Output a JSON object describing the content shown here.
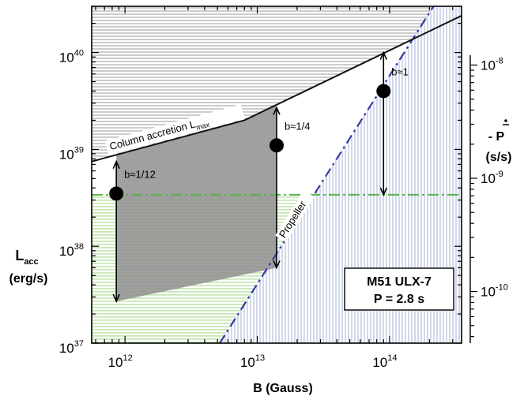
{
  "chart_data": {
    "type": "scatter",
    "xlabel": "B (Gauss)",
    "ylabel_main": "L",
    "ylabel_sub": "acc",
    "ylabel_unit": "(erg/s)",
    "y2label_main": "- P",
    "y2label_unit": "(s/s)",
    "x_scale": "log",
    "y_scale": "log",
    "xlim": [
      560000000000.0,
      350000000000000.0
    ],
    "ylim": [
      1e+37,
      3e+40
    ],
    "y2lim": [
      3.5e-11,
      3.3e-08
    ],
    "x_ticks": [
      {
        "value": 1000000000000.0,
        "base": "10",
        "exp": "12"
      },
      {
        "value": 10000000000000.0,
        "base": "10",
        "exp": "13"
      },
      {
        "value": 100000000000000.0,
        "base": "10",
        "exp": "14"
      }
    ],
    "y_ticks": [
      {
        "value": 1e+37,
        "base": "10",
        "exp": "37"
      },
      {
        "value": 1e+38,
        "base": "10",
        "exp": "38"
      },
      {
        "value": 1e+39,
        "base": "10",
        "exp": "39"
      },
      {
        "value": 1e+40,
        "base": "10",
        "exp": "40"
      }
    ],
    "y2_ticks": [
      {
        "value": 1e-10,
        "base": "10",
        "exp": "-10"
      },
      {
        "value": 1e-09,
        "base": "10",
        "exp": "-9"
      },
      {
        "value": 1e-08,
        "base": "10",
        "exp": "-8"
      }
    ],
    "lmax_label_main": "Column accretion L",
    "lmax_label_sub": "max",
    "lmax_curve": {
      "x": [
        560000000000.0,
        8000000000000.0,
        350000000000000.0
      ],
      "y": [
        7.5e+38,
        2e+39,
        2.4e+40
      ]
    },
    "propeller_label": "Propeller",
    "propeller_line": {
      "x": [
        5200000000000.0,
        215000000000000.0
      ],
      "y": [
        1e+37,
        3e+40
      ]
    },
    "observed_level": 3.4e+38,
    "points": [
      {
        "label": "b≈1/12",
        "x": 860000000000.0,
        "y": 3.5e+38,
        "y_top": 7.5e+38,
        "y_bottom": 2.7e+37
      },
      {
        "label": "b≈1/4",
        "x": 14000000000000.0,
        "y": 1.1e+39,
        "y_top": 2.7e+39,
        "y_bottom": 6e+37
      },
      {
        "label": "b≈1",
        "x": 90000000000000.0,
        "y": 4e+39,
        "y_top": 1e+40,
        "y_bottom": 3.4e+38
      }
    ],
    "box_line1": "M51  ULX-7",
    "box_line2": "P = 2.8 s",
    "colors": {
      "lmax_curve": "#111111",
      "propeller_line": "#3a3aa8",
      "observed_level": "#5ab04a",
      "grey_region": "#8f8f8f",
      "green_hatch": "#8fcf6e",
      "blue_hatch": "#9aa8d0",
      "upper_hatch": "#7a7a7a",
      "points": "#000000"
    }
  }
}
